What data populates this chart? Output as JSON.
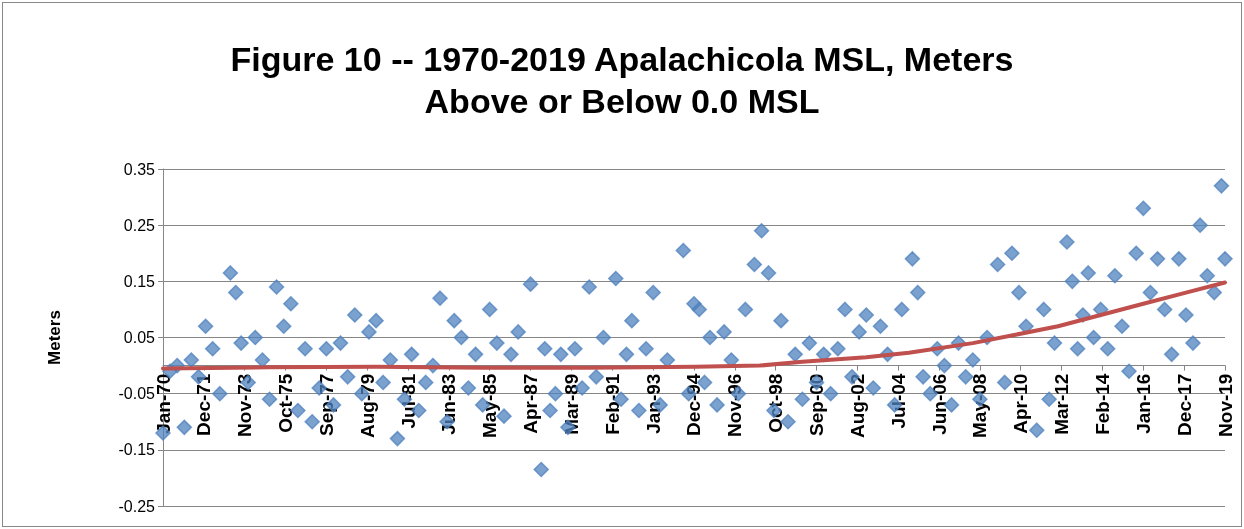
{
  "chart_data": {
    "type": "scatter",
    "title": "Figure 10 -- 1970-2019 Apalachicola MSL, Meters Above or Below 0.0 MSL",
    "ylabel": "Meters",
    "xlim": [
      "1970-01",
      "2019-11"
    ],
    "xticks": [
      {
        "value": "1970-01",
        "label": "Jan-70"
      },
      {
        "value": "1971-12",
        "label": "Dec-71"
      },
      {
        "value": "1973-11",
        "label": "Nov-73"
      },
      {
        "value": "1975-10",
        "label": "Oct-75"
      },
      {
        "value": "1977-09",
        "label": "Sep-77"
      },
      {
        "value": "1979-08",
        "label": "Aug-79"
      },
      {
        "value": "1981-07",
        "label": "Jul-81"
      },
      {
        "value": "1983-06",
        "label": "Jun-83"
      },
      {
        "value": "1985-05",
        "label": "May-85"
      },
      {
        "value": "1987-04",
        "label": "Apr-87"
      },
      {
        "value": "1989-03",
        "label": "Mar-89"
      },
      {
        "value": "1991-02",
        "label": "Feb-91"
      },
      {
        "value": "1993-01",
        "label": "Jan-93"
      },
      {
        "value": "1994-12",
        "label": "Dec-94"
      },
      {
        "value": "1996-11",
        "label": "Nov-96"
      },
      {
        "value": "1998-10",
        "label": "Oct-98"
      },
      {
        "value": "2000-09",
        "label": "Sep-00"
      },
      {
        "value": "2002-08",
        "label": "Aug-02"
      },
      {
        "value": "2004-07",
        "label": "Jul-04"
      },
      {
        "value": "2006-06",
        "label": "Jun-06"
      },
      {
        "value": "2008-05",
        "label": "May-08"
      },
      {
        "value": "2010-04",
        "label": "Apr-10"
      },
      {
        "value": "2012-03",
        "label": "Mar-12"
      },
      {
        "value": "2014-02",
        "label": "Feb-14"
      },
      {
        "value": "2016-01",
        "label": "Jan-16"
      },
      {
        "value": "2017-12",
        "label": "Dec-17"
      },
      {
        "value": "2019-11",
        "label": "Nov-19"
      }
    ],
    "ylim": [
      -0.25,
      0.35
    ],
    "yticks": [
      -0.25,
      -0.15,
      -0.05,
      0.05,
      0.15,
      0.25,
      0.35
    ],
    "grid": "y",
    "marker": "diamond",
    "series": [
      {
        "color": "#4f81bd",
        "x": [
          "1970-01",
          "1970-05",
          "1970-09",
          "1971-01",
          "1971-05",
          "1971-09",
          "1972-01",
          "1972-05",
          "1972-09",
          "1973-03",
          "1973-06",
          "1973-09",
          "1974-01",
          "1974-05",
          "1974-09",
          "1975-01",
          "1975-05",
          "1975-09",
          "1976-01",
          "1976-05",
          "1976-09",
          "1977-01",
          "1977-05",
          "1977-09",
          "1978-01",
          "1978-05",
          "1978-09",
          "1979-01",
          "1979-05",
          "1979-09",
          "1980-01",
          "1980-05",
          "1980-09",
          "1981-01",
          "1981-05",
          "1981-09",
          "1982-01",
          "1982-05",
          "1982-09",
          "1983-01",
          "1983-05",
          "1983-09",
          "1984-01",
          "1984-05",
          "1984-09",
          "1985-01",
          "1985-05",
          "1985-09",
          "1986-01",
          "1986-05",
          "1986-09",
          "1987-04",
          "1987-10",
          "1987-12",
          "1988-03",
          "1988-06",
          "1988-09",
          "1989-01",
          "1989-05",
          "1989-09",
          "1990-01",
          "1990-05",
          "1990-09",
          "1991-04",
          "1991-07",
          "1991-10",
          "1992-01",
          "1992-05",
          "1992-09",
          "1993-01",
          "1993-05",
          "1993-09",
          "1994-06",
          "1994-09",
          "1994-12",
          "1995-03",
          "1995-06",
          "1995-09",
          "1996-01",
          "1996-05",
          "1996-09",
          "1997-01",
          "1997-05",
          "1997-10",
          "1998-02",
          "1998-06",
          "1998-09",
          "1999-01",
          "1999-05",
          "1999-09",
          "2000-01",
          "2000-05",
          "2000-09",
          "2001-01",
          "2001-05",
          "2001-09",
          "2002-01",
          "2002-05",
          "2002-09",
          "2003-01",
          "2003-05",
          "2003-09",
          "2004-01",
          "2004-05",
          "2004-09",
          "2005-03",
          "2005-06",
          "2005-09",
          "2006-01",
          "2006-05",
          "2006-09",
          "2007-01",
          "2007-05",
          "2007-09",
          "2008-01",
          "2008-05",
          "2008-09",
          "2009-03",
          "2009-07",
          "2009-11",
          "2010-03",
          "2010-07",
          "2011-01",
          "2011-05",
          "2011-08",
          "2011-11",
          "2012-06",
          "2012-09",
          "2012-12",
          "2013-03",
          "2013-06",
          "2013-09",
          "2014-01",
          "2014-05",
          "2014-09",
          "2015-01",
          "2015-05",
          "2015-09",
          "2016-01",
          "2016-05",
          "2016-09",
          "2017-01",
          "2017-05",
          "2017-09",
          "2018-01",
          "2018-05",
          "2018-09",
          "2019-01",
          "2019-05",
          "2019-09",
          "2019-11"
        ],
        "values": [
          -0.12,
          -0.01,
          0.0,
          -0.11,
          0.01,
          -0.02,
          0.07,
          0.03,
          -0.05,
          0.165,
          0.13,
          0.04,
          -0.03,
          0.05,
          0.01,
          -0.06,
          0.14,
          0.07,
          0.11,
          -0.08,
          0.03,
          -0.1,
          -0.04,
          0.03,
          -0.07,
          0.04,
          -0.02,
          0.09,
          -0.05,
          0.06,
          0.08,
          -0.03,
          0.01,
          -0.13,
          -0.06,
          0.02,
          -0.08,
          -0.03,
          0.0,
          0.12,
          -0.1,
          0.08,
          0.05,
          -0.04,
          0.02,
          -0.07,
          0.1,
          0.04,
          -0.09,
          0.02,
          0.06,
          0.145,
          -0.185,
          0.03,
          -0.08,
          -0.05,
          0.02,
          -0.11,
          0.03,
          -0.04,
          0.14,
          -0.02,
          0.05,
          0.155,
          -0.06,
          0.02,
          0.08,
          -0.08,
          0.03,
          0.13,
          -0.07,
          0.01,
          0.205,
          -0.05,
          0.11,
          0.1,
          -0.03,
          0.05,
          -0.07,
          0.06,
          0.01,
          -0.05,
          0.1,
          0.18,
          0.24,
          0.165,
          -0.08,
          0.08,
          -0.1,
          0.02,
          -0.06,
          0.04,
          -0.03,
          0.02,
          -0.05,
          0.03,
          0.1,
          -0.02,
          0.06,
          0.09,
          -0.04,
          0.07,
          0.02,
          -0.07,
          0.1,
          0.19,
          0.13,
          -0.02,
          -0.05,
          0.03,
          0.0,
          -0.07,
          0.04,
          -0.02,
          0.01,
          -0.06,
          0.05,
          0.18,
          -0.03,
          0.2,
          0.13,
          0.07,
          -0.115,
          0.1,
          -0.06,
          0.04,
          0.22,
          0.15,
          0.03,
          0.09,
          0.165,
          0.05,
          0.1,
          0.03,
          0.16,
          0.07,
          -0.01,
          0.2,
          0.28,
          0.13,
          0.19,
          0.1,
          0.02,
          0.19,
          0.09,
          0.04,
          0.25,
          0.16,
          0.13,
          0.32,
          0.19
        ]
      },
      {
        "type": "line",
        "color": "#c0504d",
        "marker": "none",
        "line_style": "solid",
        "x": [
          "1970-01",
          "1975-01",
          "1980-01",
          "1985-01",
          "1990-01",
          "1995-01",
          "1998-01",
          "2000-01",
          "2003-01",
          "2005-01",
          "2008-01",
          "2010-01",
          "2012-01",
          "2014-01",
          "2016-01",
          "2018-01",
          "2019-11"
        ],
        "values": [
          -0.005,
          -0.003,
          -0.002,
          -0.004,
          -0.004,
          -0.002,
          0.0,
          0.007,
          0.015,
          0.023,
          0.04,
          0.055,
          0.07,
          0.09,
          0.11,
          0.13,
          0.148
        ]
      }
    ]
  }
}
